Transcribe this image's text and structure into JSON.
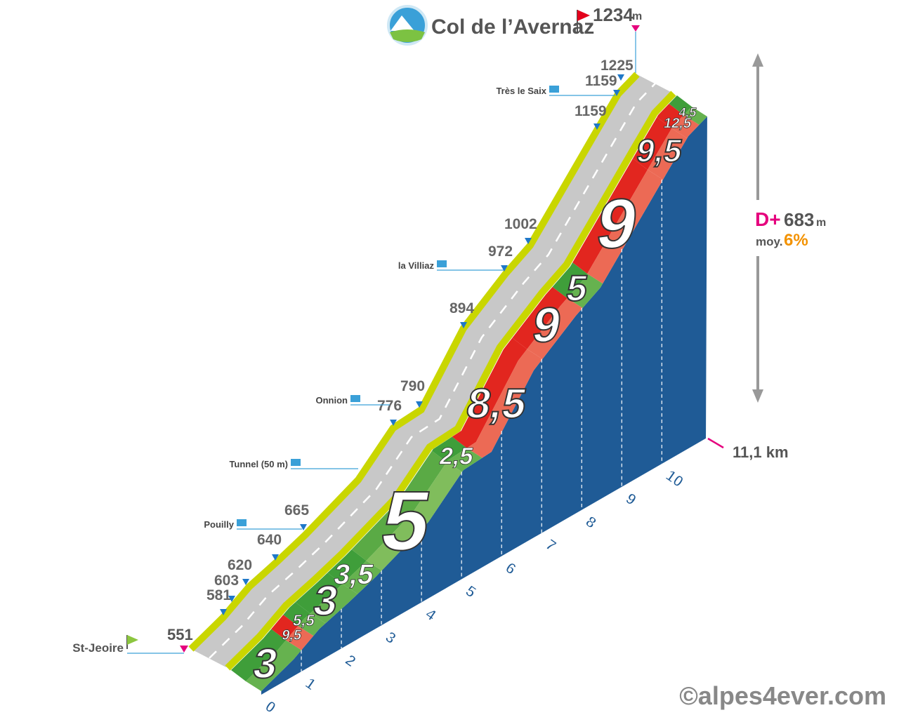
{
  "title": "Col de l’Avernaz",
  "summit": {
    "elevation": "1234",
    "unit": "m"
  },
  "start": {
    "name": "St-Jeoire",
    "elevation": "551"
  },
  "elevation_markers": [
    "581",
    "603",
    "620",
    "640",
    "665",
    "776",
    "790",
    "894",
    "972",
    "1002",
    "1159",
    "1159",
    "1225"
  ],
  "places": [
    "Pouilly",
    "Tunnel (50 m)",
    "Onnion",
    "la Villiaz",
    "Très le Saix"
  ],
  "segments": [
    "3",
    "9,5",
    "5,5",
    "3",
    "3,5",
    "5",
    "2,5",
    "8,5",
    "9",
    "5",
    "9",
    "9,5",
    "12,5",
    "4,5"
  ],
  "km_ticks": [
    "0",
    "1",
    "2",
    "3",
    "4",
    "5",
    "6",
    "7",
    "8",
    "9",
    "10"
  ],
  "distance": "11,1 km",
  "climb": {
    "label": "D+",
    "value": "683",
    "unit": "m",
    "avg_label": "moy.",
    "avg": "6%"
  },
  "copyright": "©alpes4ever.com"
}
